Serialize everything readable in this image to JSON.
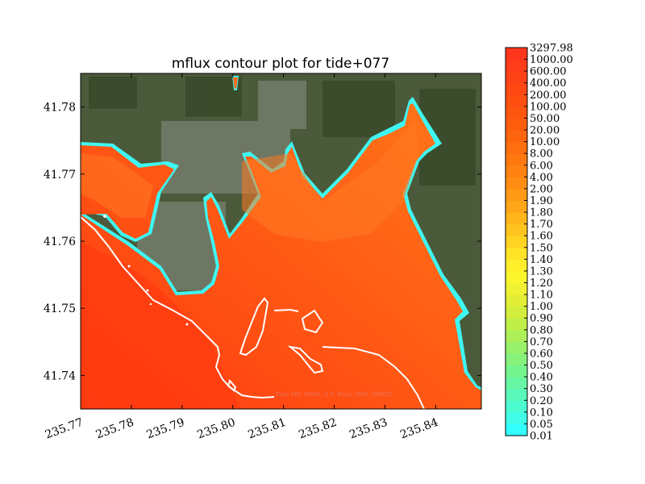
{
  "chart_data": {
    "type": "heatmap",
    "title": "mflux contour plot for tide+077",
    "xlabel": "",
    "ylabel": "",
    "xlim": [
      235.77,
      235.849
    ],
    "ylim": [
      41.735,
      41.785
    ],
    "x_ticks": [
      "235.77",
      "235.78",
      "235.79",
      "235.80",
      "235.81",
      "235.82",
      "235.83",
      "235.84"
    ],
    "y_ticks": [
      "41.74",
      "41.75",
      "41.76",
      "41.77",
      "41.78"
    ],
    "colorbar": {
      "levels": [
        "0.01",
        "0.05",
        "0.10",
        "0.20",
        "0.30",
        "0.40",
        "0.50",
        "0.60",
        "0.70",
        "0.80",
        "0.90",
        "1.00",
        "1.10",
        "1.20",
        "1.30",
        "1.40",
        "1.50",
        "1.60",
        "1.70",
        "1.80",
        "1.90",
        "2.00",
        "4.00",
        "6.00",
        "8.00",
        "10.00",
        "20.00",
        "50.00",
        "100.00",
        "200.00",
        "400.00",
        "600.00",
        "1000.00",
        "3297.98"
      ],
      "colors": [
        "#33ffff",
        "#40fde8",
        "#4dfbd1",
        "#5af8ba",
        "#67f6a3",
        "#74f48c",
        "#86f27c",
        "#99f06a",
        "#acef58",
        "#bfee48",
        "#d2ed3c",
        "#e2ee36",
        "#f0f132",
        "#fbf52e",
        "#ffef2a",
        "#ffe326",
        "#ffd422",
        "#ffc51e",
        "#ffb61b",
        "#ffa618",
        "#ff9916",
        "#ff8d14",
        "#ff8212",
        "#ff7810",
        "#ff6e0f",
        "#ff650e",
        "#ff5d0e",
        "#ff560f",
        "#ff4f11",
        "#ff4813",
        "#ff4216",
        "#ff3c19",
        "#ff361c"
      ]
    }
  },
  "credit_text": "Data SIO, NOAA, U.S. Navy, NGA, GEBCO"
}
